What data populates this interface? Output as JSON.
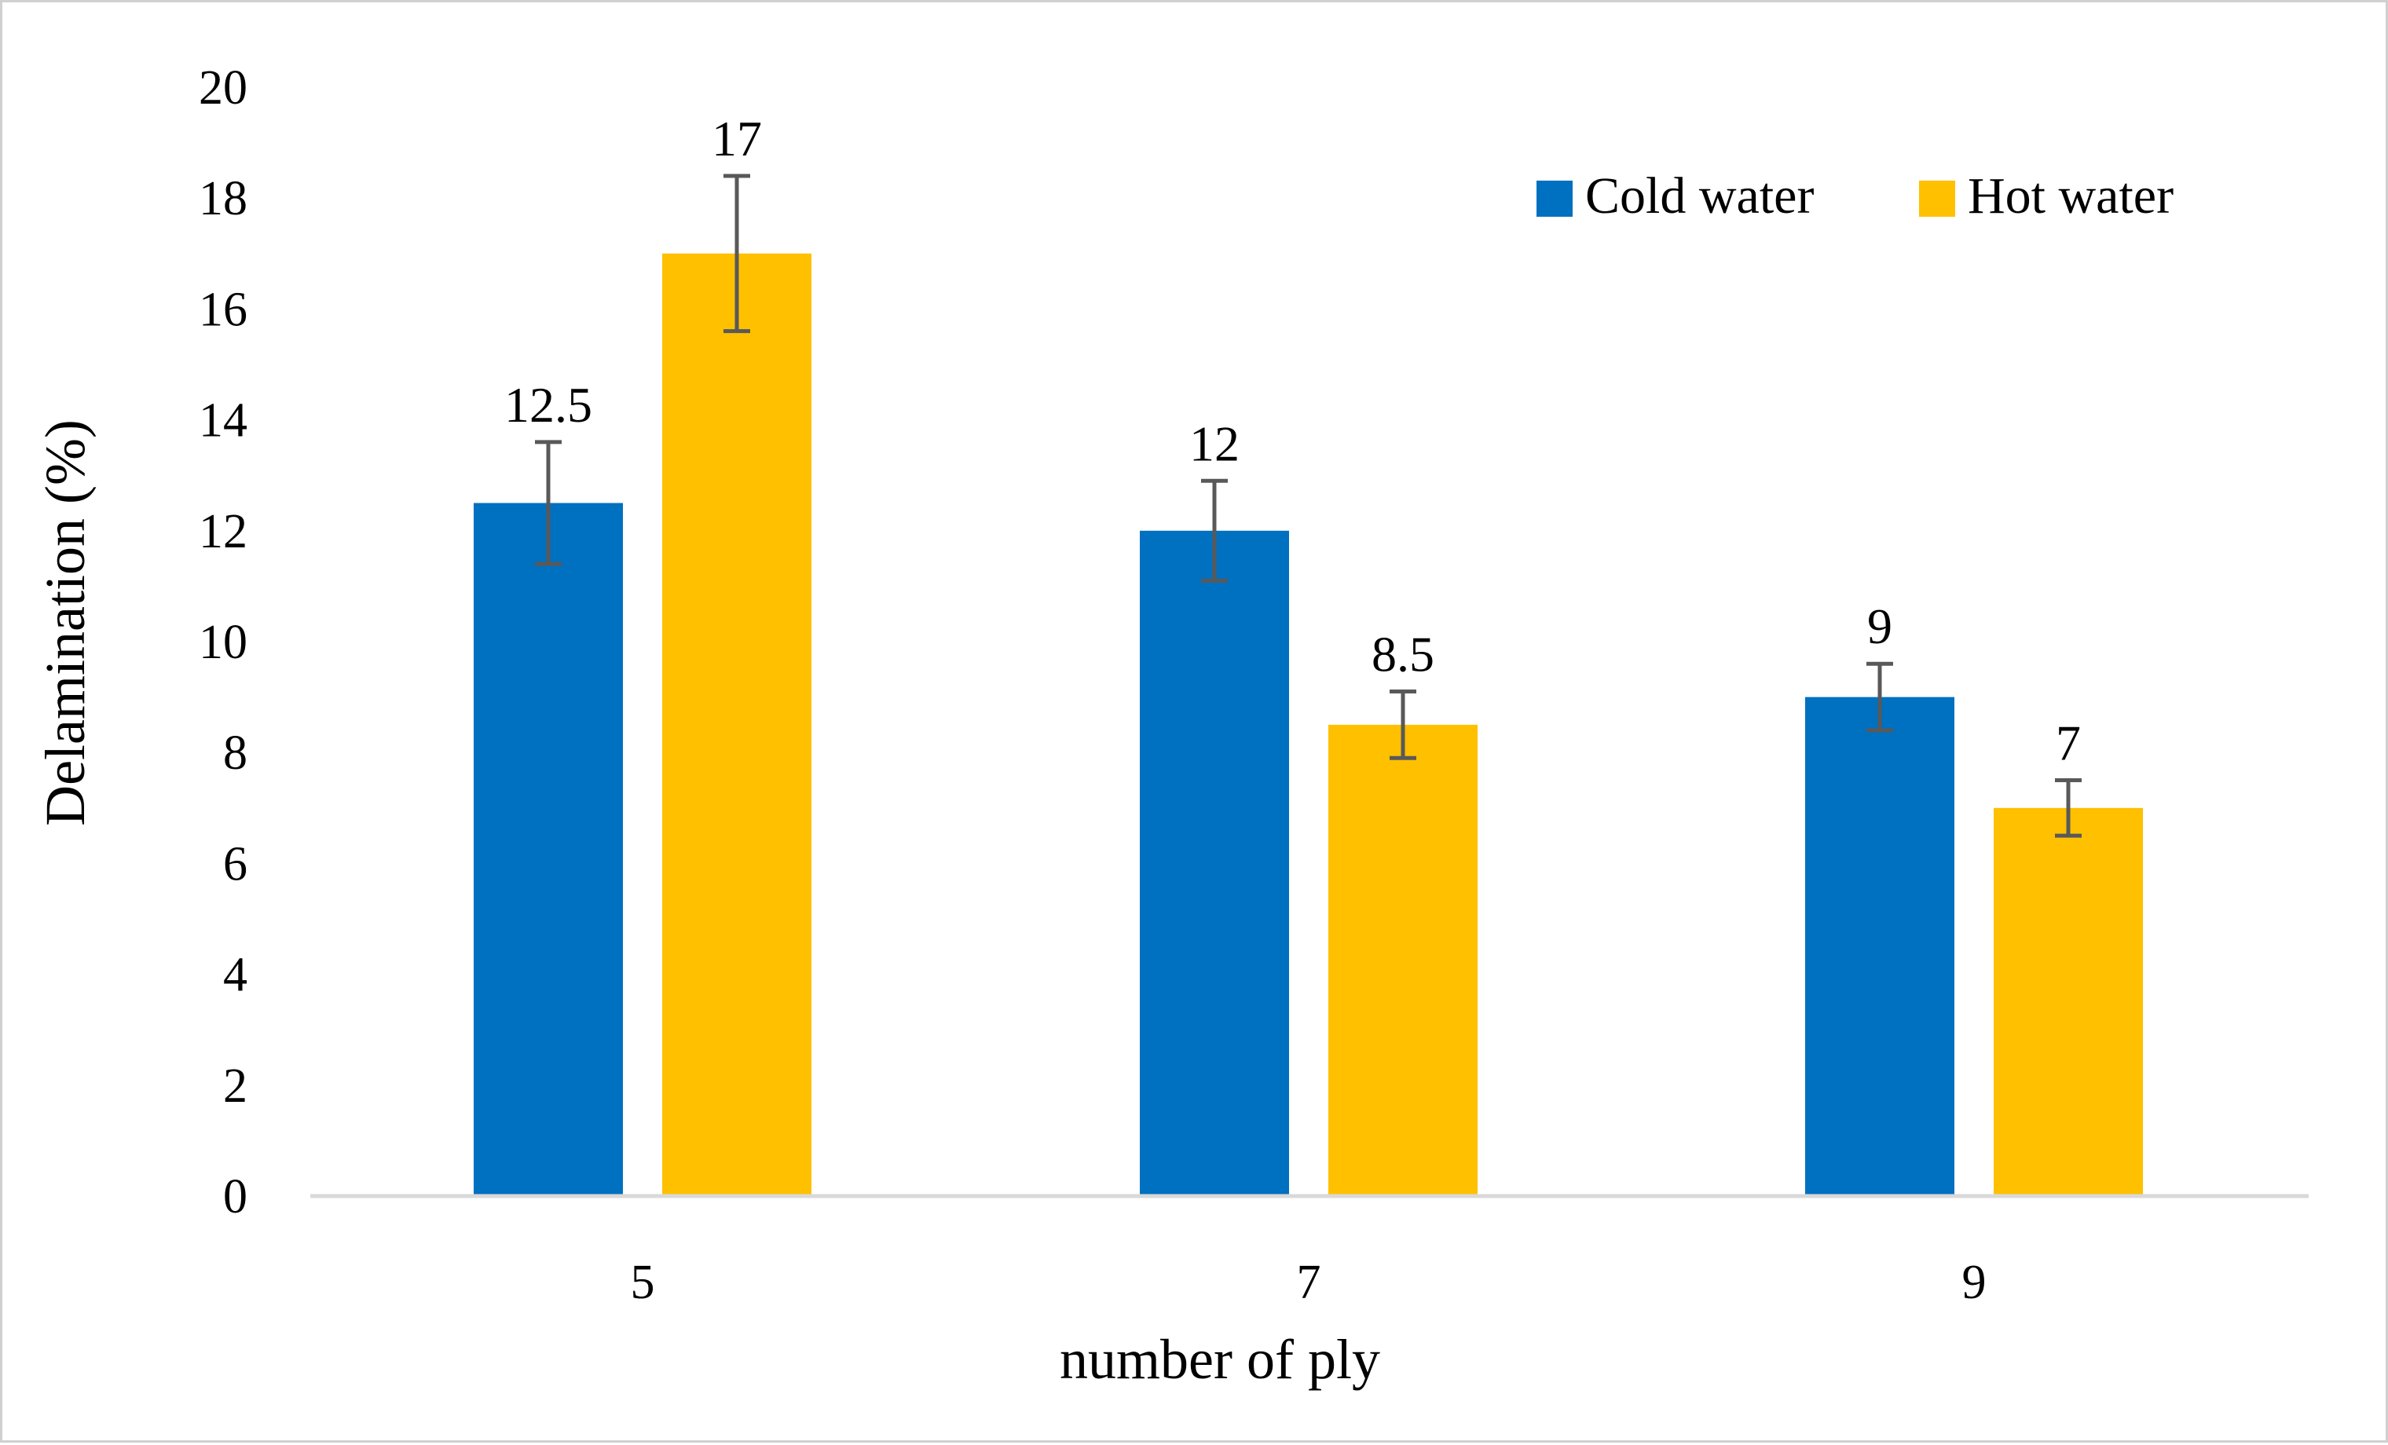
{
  "chart_data": {
    "type": "bar",
    "title": "",
    "xlabel": "number of ply",
    "ylabel": "Delamination (%)",
    "categories": [
      "5",
      "7",
      "9"
    ],
    "ylim": [
      0,
      20
    ],
    "yticks": [
      0,
      2,
      4,
      6,
      8,
      10,
      12,
      14,
      16,
      18,
      20
    ],
    "grid": false,
    "legend_position": "top-right",
    "series": [
      {
        "name": "Cold water",
        "color": "#0070C0",
        "values": [
          12.5,
          12,
          9
        ],
        "labels": [
          "12.5",
          "12",
          "9"
        ],
        "errors": [
          1.1,
          0.9,
          0.6
        ]
      },
      {
        "name": "Hot water",
        "color": "#FFC000",
        "values": [
          17,
          8.5,
          7
        ],
        "labels": [
          "17",
          "8.5",
          "7"
        ],
        "errors": [
          1.4,
          0.6,
          0.5
        ]
      }
    ],
    "axis_color": "#d9d9d9",
    "error_bar_color": "#595959"
  }
}
